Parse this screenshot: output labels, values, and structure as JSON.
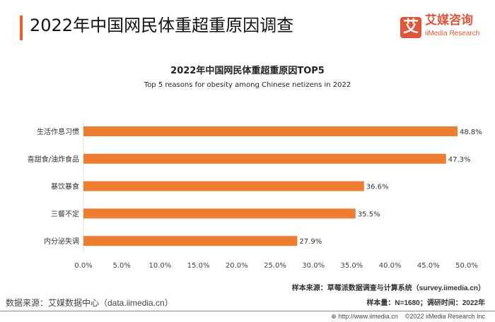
{
  "header": {
    "title": "2022年中国网民体重超重原因调查",
    "logo_glyph": "艾",
    "logo_cn": "艾媒咨询",
    "logo_en": "iiMedia Research"
  },
  "chart_data": {
    "type": "bar",
    "orientation": "horizontal",
    "title": "2022年中国网民体重超重原因TOP5",
    "subtitle": "Top 5 reasons for obesity among Chinese netizens in 2022",
    "categories": [
      "生活作息习惯",
      "喜甜食/油炸食品",
      "暴饮暴食",
      "三餐不定",
      "内分泌失调"
    ],
    "values": [
      48.8,
      47.3,
      36.6,
      35.5,
      27.9
    ],
    "data_labels": [
      "48.8%",
      "47.3%",
      "36.6%",
      "35.5%",
      "27.9%"
    ],
    "xlim": [
      0,
      50
    ],
    "ticks": [
      "0.0%",
      "5.0%",
      "10.0%",
      "15.0%",
      "20.0%",
      "25.0%",
      "30.0%",
      "35.0%",
      "40.0%",
      "45.0%",
      "50.0%"
    ],
    "grid": false,
    "bar_color": "#ED7D31"
  },
  "notes": {
    "sample_source": "样本来源：草莓派数据调查与计算系统（survey.iimedia.cn）",
    "sample_size": "样本量：N=1680；调研时间：2022年"
  },
  "footer": {
    "data_source": "数据来源：艾媒数据中心（data.iimedia.cn）",
    "url": "http://www.iimedia.cn",
    "copyright": "©2022  iiMedia Research Inc"
  }
}
